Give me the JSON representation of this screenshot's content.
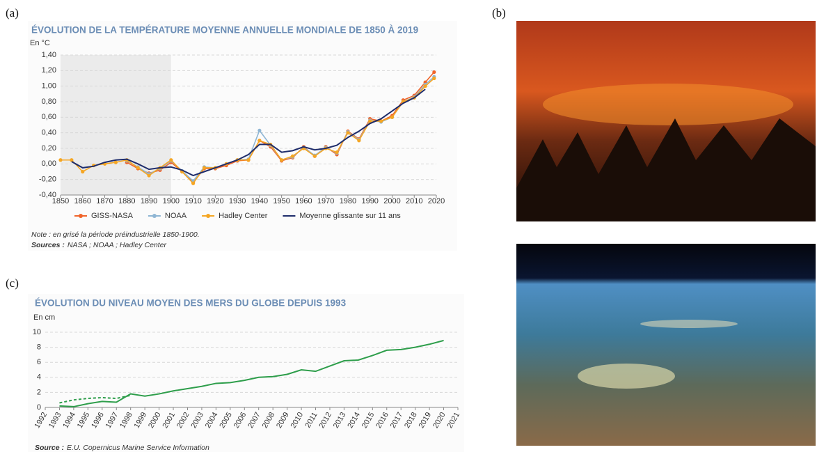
{
  "panels": [
    "(a)",
    "(b)",
    "(c)"
  ],
  "chart_data": [
    {
      "type": "line",
      "title": "ÉVOLUTION DE LA TEMPÉRATURE MOYENNE ANNUELLE MONDIALE DE 1850 À 2019",
      "y_label": "En °C",
      "x": [
        1850,
        1855,
        1860,
        1865,
        1870,
        1875,
        1880,
        1885,
        1890,
        1895,
        1900,
        1905,
        1910,
        1915,
        1920,
        1925,
        1930,
        1935,
        1940,
        1945,
        1950,
        1955,
        1960,
        1965,
        1970,
        1975,
        1980,
        1985,
        1990,
        1995,
        2000,
        2005,
        2010,
        2015,
        2019
      ],
      "series": [
        {
          "name": "GISS-NASA",
          "color": "#f0642a",
          "markers": true,
          "values": [
            null,
            null,
            null,
            null,
            null,
            null,
            0.02,
            -0.06,
            -0.12,
            -0.08,
            0.02,
            -0.1,
            -0.24,
            -0.06,
            -0.06,
            -0.02,
            0.04,
            0.05,
            0.3,
            0.22,
            0.04,
            0.08,
            0.22,
            0.1,
            0.22,
            0.12,
            0.42,
            0.32,
            0.58,
            0.55,
            0.62,
            0.82,
            0.88,
            1.05,
            1.18
          ]
        },
        {
          "name": "NOAA",
          "color": "#8fb6d4",
          "markers": true,
          "values": [
            null,
            null,
            null,
            null,
            null,
            null,
            0.04,
            -0.04,
            -0.13,
            -0.06,
            0.04,
            -0.09,
            -0.22,
            -0.04,
            -0.05,
            0.0,
            0.05,
            0.06,
            0.43,
            0.24,
            0.05,
            0.09,
            0.21,
            0.11,
            0.21,
            0.14,
            0.41,
            0.31,
            0.56,
            0.54,
            0.6,
            0.8,
            0.86,
            1.02,
            1.12
          ]
        },
        {
          "name": "Hadley Center",
          "color": "#f5a623",
          "markers": true,
          "values": [
            0.05,
            0.05,
            -0.1,
            -0.02,
            0.0,
            0.02,
            0.05,
            -0.05,
            -0.15,
            -0.05,
            0.05,
            -0.1,
            -0.25,
            -0.05,
            -0.05,
            0.0,
            0.05,
            0.05,
            0.3,
            0.25,
            0.05,
            0.1,
            0.2,
            0.1,
            0.2,
            0.15,
            0.4,
            0.3,
            0.55,
            0.55,
            0.6,
            0.8,
            0.85,
            1.0,
            1.1
          ]
        },
        {
          "name": "Moyenne glissante sur 11 ans",
          "color": "#1f2d6b",
          "markers": false,
          "values": [
            null,
            0.03,
            -0.05,
            -0.03,
            0.02,
            0.05,
            0.06,
            0.0,
            -0.07,
            -0.05,
            -0.04,
            -0.08,
            -0.15,
            -0.1,
            -0.05,
            0.0,
            0.05,
            0.12,
            0.25,
            0.25,
            0.15,
            0.17,
            0.22,
            0.18,
            0.2,
            0.24,
            0.34,
            0.42,
            0.52,
            0.58,
            0.68,
            0.78,
            0.85,
            0.96,
            null
          ]
        }
      ],
      "xlim": [
        1850,
        2020
      ],
      "xticks": [
        1850,
        1860,
        1870,
        1880,
        1890,
        1900,
        1910,
        1920,
        1930,
        1940,
        1950,
        1960,
        1970,
        1980,
        1990,
        2000,
        2010,
        2020
      ],
      "ylim": [
        -0.4,
        1.4
      ],
      "yticks": [
        {
          "value": -0.4,
          "label": "-0,40"
        },
        {
          "value": -0.2,
          "label": "-0,20"
        },
        {
          "value": 0,
          "label": "0,00"
        },
        {
          "value": 0.2,
          "label": "0,20"
        },
        {
          "value": 0.4,
          "label": "0,40"
        },
        {
          "value": 0.6,
          "label": "0,60"
        },
        {
          "value": 0.8,
          "label": "0,80"
        },
        {
          "value": 1.0,
          "label": "1,00"
        },
        {
          "value": 1.2,
          "label": "1,20"
        },
        {
          "value": 1.4,
          "label": "1,40"
        }
      ],
      "grid": true,
      "shade_x": [
        1850,
        1900
      ],
      "note": "Note : en grisé la période préindustrielle 1850-1900.",
      "source_label": "Sources :",
      "sources": "NASA ; NOAA ; Hadley Center"
    },
    {
      "type": "line",
      "title": "ÉVOLUTION DU NIVEAU MOYEN DES MERS DU GLOBE DEPUIS 1993",
      "y_label": "En cm",
      "x": [
        1993,
        1994,
        1995,
        1996,
        1997,
        1998,
        1999,
        2000,
        2001,
        2002,
        2003,
        2004,
        2005,
        2006,
        2007,
        2008,
        2009,
        2010,
        2011,
        2012,
        2013,
        2014,
        2015,
        2016,
        2017,
        2018,
        2019,
        2020
      ],
      "series": [
        {
          "color": "#2e9e4b",
          "markers": false,
          "values": [
            0.2,
            0.1,
            0.5,
            0.8,
            0.7,
            1.8,
            1.5,
            1.8,
            2.2,
            2.5,
            2.8,
            3.2,
            3.3,
            3.6,
            4.0,
            4.1,
            4.4,
            5.0,
            4.8,
            5.5,
            6.2,
            6.3,
            6.9,
            7.6,
            7.7,
            8.0,
            8.4,
            8.9
          ]
        },
        {
          "color": "#2e9e4b",
          "markers": false,
          "dash": true,
          "values": [
            0.6,
            1.0,
            1.2,
            1.3,
            1.2,
            1.6,
            null,
            null,
            null,
            null,
            null,
            null,
            null,
            null,
            null,
            null,
            null,
            null,
            null,
            null,
            null,
            null,
            null,
            null,
            null,
            null,
            null,
            null
          ]
        }
      ],
      "xlim": [
        1992,
        2021
      ],
      "xticks": [
        1992,
        1993,
        1994,
        1995,
        1996,
        1997,
        1998,
        1999,
        2000,
        2001,
        2002,
        2003,
        2004,
        2005,
        2006,
        2007,
        2008,
        2009,
        2010,
        2011,
        2012,
        2013,
        2014,
        2015,
        2016,
        2017,
        2018,
        2019,
        2020,
        2021
      ],
      "ylim": [
        0,
        10
      ],
      "yticks": [
        0,
        2,
        4,
        6,
        8,
        10
      ],
      "grid": true,
      "source_label": "Source :",
      "sources": "E.U. Copernicus Marine Service Information"
    }
  ]
}
